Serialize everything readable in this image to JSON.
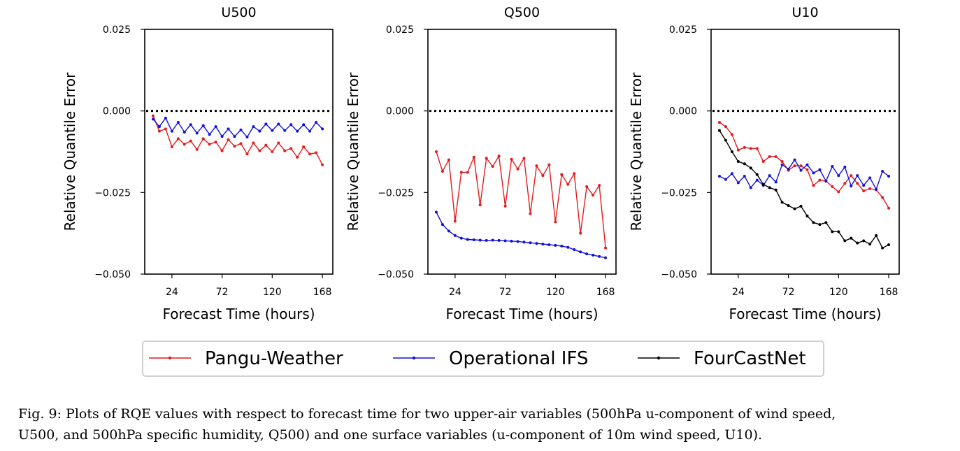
{
  "chart_data": [
    {
      "type": "line",
      "title": "U500",
      "xlabel": "Forecast Time (hours)",
      "ylabel": "Relative Quantile Error",
      "xticks": [
        24,
        72,
        120,
        168
      ],
      "yticks": [
        0.025,
        0.0,
        -0.025,
        -0.05
      ],
      "ytick_labels": [
        "0.025",
        "0.000",
        "−0.025",
        "−0.050"
      ],
      "xlim": [
        -2,
        178
      ],
      "ylim": [
        -0.05,
        0.025
      ],
      "grid": false,
      "x": [
        6,
        12,
        18,
        24,
        30,
        36,
        42,
        48,
        54,
        60,
        66,
        72,
        78,
        84,
        90,
        96,
        102,
        108,
        114,
        120,
        126,
        132,
        138,
        144,
        150,
        156,
        162,
        168
      ],
      "series": [
        {
          "name": "Pangu-Weather",
          "color": "#e41a1c",
          "values": [
            -0.0015,
            -0.0062,
            -0.0055,
            -0.011,
            -0.0085,
            -0.0102,
            -0.0092,
            -0.0118,
            -0.0085,
            -0.0102,
            -0.0095,
            -0.0122,
            -0.0088,
            -0.0108,
            -0.01,
            -0.0132,
            -0.0098,
            -0.0122,
            -0.0105,
            -0.0125,
            -0.0098,
            -0.0122,
            -0.0115,
            -0.0142,
            -0.011,
            -0.0132,
            -0.0128,
            -0.0165
          ]
        },
        {
          "name": "Operational IFS",
          "color": "#1010e0",
          "values": [
            -0.0025,
            -0.0048,
            -0.0022,
            -0.0062,
            -0.0035,
            -0.0065,
            -0.0042,
            -0.0068,
            -0.0045,
            -0.0072,
            -0.0048,
            -0.0078,
            -0.0055,
            -0.0078,
            -0.0058,
            -0.008,
            -0.0048,
            -0.0062,
            -0.004,
            -0.006,
            -0.004,
            -0.006,
            -0.0042,
            -0.0062,
            -0.0042,
            -0.0062,
            -0.0035,
            -0.0055
          ]
        }
      ]
    },
    {
      "type": "line",
      "title": "Q500",
      "xlabel": "Forecast Time (hours)",
      "ylabel": "Relative Quantile Error",
      "xticks": [
        24,
        72,
        120,
        168
      ],
      "yticks": [
        0.025,
        0.0,
        -0.025,
        -0.05
      ],
      "ytick_labels": [
        "0.025",
        "0.000",
        "−0.025",
        "−0.050"
      ],
      "xlim": [
        -2,
        178
      ],
      "ylim": [
        -0.05,
        0.025
      ],
      "grid": false,
      "x": [
        6,
        12,
        18,
        24,
        30,
        36,
        42,
        48,
        54,
        60,
        66,
        72,
        78,
        84,
        90,
        96,
        102,
        108,
        114,
        120,
        126,
        132,
        138,
        144,
        150,
        156,
        162,
        168
      ],
      "series": [
        {
          "name": "Pangu-Weather",
          "color": "#e41a1c",
          "values": [
            -0.0125,
            -0.0185,
            -0.015,
            -0.0338,
            -0.0188,
            -0.0188,
            -0.0142,
            -0.0288,
            -0.0145,
            -0.017,
            -0.0138,
            -0.0292,
            -0.0148,
            -0.0178,
            -0.0145,
            -0.0315,
            -0.0168,
            -0.0198,
            -0.0165,
            -0.034,
            -0.0195,
            -0.0225,
            -0.0192,
            -0.0375,
            -0.0232,
            -0.0258,
            -0.0228,
            -0.042
          ]
        },
        {
          "name": "Operational IFS",
          "color": "#1010e0",
          "values": [
            -0.031,
            -0.0348,
            -0.0368,
            -0.0382,
            -0.039,
            -0.0394,
            -0.0395,
            -0.0396,
            -0.0397,
            -0.0396,
            -0.0397,
            -0.0398,
            -0.0399,
            -0.04,
            -0.0402,
            -0.0404,
            -0.0406,
            -0.0408,
            -0.041,
            -0.0412,
            -0.0414,
            -0.0418,
            -0.0425,
            -0.0432,
            -0.0438,
            -0.0442,
            -0.0446,
            -0.045
          ]
        }
      ]
    },
    {
      "type": "line",
      "title": "U10",
      "xlabel": "Forecast Time (hours)",
      "ylabel": "Relative Quantile Error",
      "xticks": [
        24,
        72,
        120,
        168
      ],
      "yticks": [
        0.025,
        0.0,
        -0.025,
        -0.05
      ],
      "ytick_labels": [
        "0.025",
        "0.000",
        "−0.025",
        "−0.050"
      ],
      "xlim": [
        -2,
        178
      ],
      "ylim": [
        -0.05,
        0.025
      ],
      "grid": false,
      "x": [
        6,
        12,
        18,
        24,
        30,
        36,
        42,
        48,
        54,
        60,
        66,
        72,
        78,
        84,
        90,
        96,
        102,
        108,
        114,
        120,
        126,
        132,
        138,
        144,
        150,
        156,
        162,
        168
      ],
      "series": [
        {
          "name": "Pangu-Weather",
          "color": "#e41a1c",
          "values": [
            -0.0035,
            -0.0048,
            -0.0072,
            -0.012,
            -0.0112,
            -0.0115,
            -0.0115,
            -0.0155,
            -0.014,
            -0.014,
            -0.0155,
            -0.0182,
            -0.0168,
            -0.0168,
            -0.018,
            -0.0228,
            -0.0212,
            -0.0215,
            -0.0232,
            -0.0248,
            -0.0222,
            -0.0198,
            -0.0222,
            -0.0245,
            -0.0238,
            -0.0242,
            -0.0265,
            -0.0298
          ]
        },
        {
          "name": "Operational IFS",
          "color": "#1010e0",
          "values": [
            -0.02,
            -0.021,
            -0.0192,
            -0.022,
            -0.02,
            -0.0235,
            -0.0212,
            -0.0228,
            -0.0198,
            -0.0218,
            -0.0165,
            -0.0178,
            -0.015,
            -0.0182,
            -0.0165,
            -0.019,
            -0.018,
            -0.0215,
            -0.017,
            -0.0198,
            -0.0172,
            -0.023,
            -0.0198,
            -0.0228,
            -0.0205,
            -0.024,
            -0.0185,
            -0.02
          ]
        },
        {
          "name": "FourCastNet",
          "color": "#000000",
          "values": [
            -0.006,
            -0.009,
            -0.0125,
            -0.0155,
            -0.0162,
            -0.0175,
            -0.0195,
            -0.0225,
            -0.0235,
            -0.0242,
            -0.028,
            -0.029,
            -0.03,
            -0.0292,
            -0.0322,
            -0.0342,
            -0.0348,
            -0.0342,
            -0.037,
            -0.037,
            -0.0398,
            -0.039,
            -0.0405,
            -0.0398,
            -0.0408,
            -0.0382,
            -0.042,
            -0.041
          ]
        }
      ]
    }
  ],
  "legend": {
    "placement": "bottom-center",
    "items": [
      {
        "label": "Pangu-Weather",
        "color": "#e41a1c"
      },
      {
        "label": "Operational IFS",
        "color": "#1010e0"
      },
      {
        "label": "FourCastNet",
        "color": "#000000"
      }
    ]
  },
  "caption": {
    "line1": "Fig. 9: Plots of RQE values with respect to forecast time for two upper-air variables (500hPa u-component of wind speed,",
    "line2": "U500, and 500hPa specific humidity, Q500) and one surface variables (u-component of 10m wind speed, U10)."
  }
}
